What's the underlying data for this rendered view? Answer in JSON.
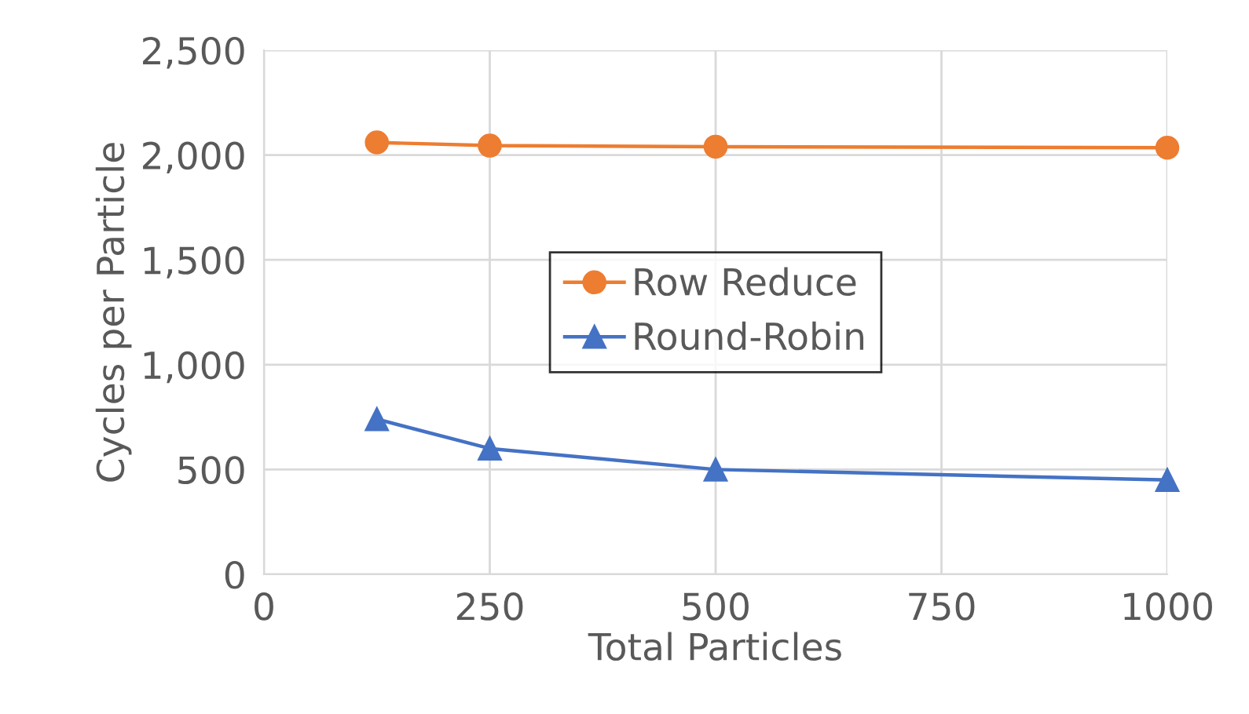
{
  "chart_data": {
    "type": "line",
    "xlabel": "Total Particles",
    "ylabel": "Cycles per Particle",
    "x": [
      125,
      250,
      500,
      1000
    ],
    "series": [
      {
        "name": "Row Reduce",
        "color": "#ed7d31",
        "marker": "circle",
        "values": [
          2060,
          2045,
          2040,
          2035
        ]
      },
      {
        "name": "Round-Robin",
        "color": "#4472c4",
        "marker": "triangle",
        "values": [
          740,
          600,
          500,
          450
        ]
      }
    ],
    "xlim": [
      0,
      1000
    ],
    "xticks": [
      0,
      250,
      500,
      750,
      1000
    ],
    "ylim": [
      0,
      2500
    ],
    "yticks": [
      0,
      {
        "value": 500,
        "label": "500"
      },
      {
        "value": 1000,
        "label": "1,000"
      },
      {
        "value": 1500,
        "label": "1,500"
      },
      {
        "value": 2000,
        "label": "2,000"
      },
      {
        "value": 2500,
        "label": "2,500"
      }
    ],
    "grid": true,
    "legend": "center",
    "line_style": "solid"
  }
}
